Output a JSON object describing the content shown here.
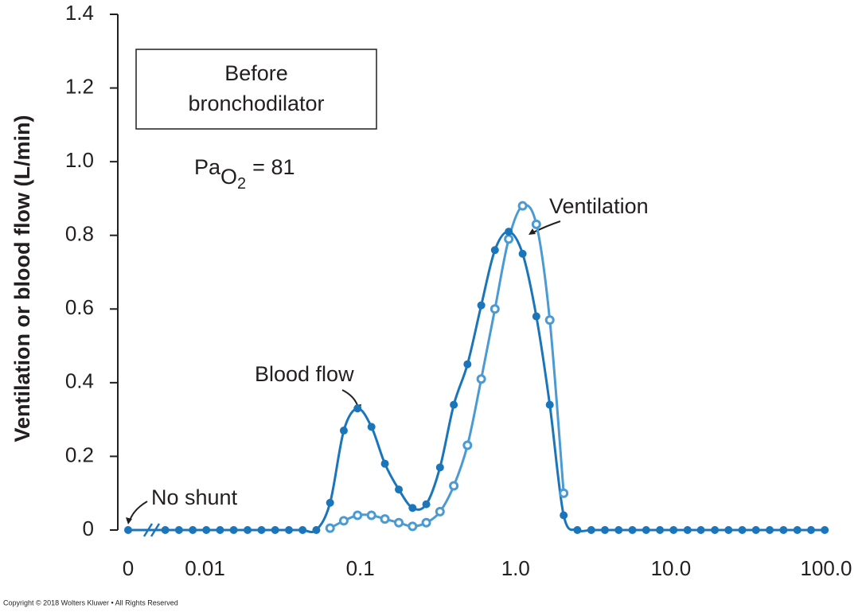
{
  "chart_data": {
    "type": "line",
    "ylabel": "Ventilation or blood flow (L/min)",
    "annotations": {
      "box_line1": "Before",
      "box_line2": "bronchodilator",
      "pao2": {
        "base": "Pa",
        "sub": "O",
        "subsub": "2",
        "rest": "= 81"
      },
      "ventilation": "Ventilation",
      "blood_flow": "Blood flow",
      "no_shunt": "No shunt"
    },
    "copyright": "Copyright © 2018 Wolters Kluwer • All Rights Reserved",
    "log_x": true,
    "x": [
      0,
      0.00555,
      0.0068,
      0.00834,
      0.0102,
      0.0125,
      0.0153,
      0.0188,
      0.0231,
      0.0283,
      0.0347,
      0.0425,
      0.0521,
      0.0639,
      0.0783,
      0.096,
      0.118,
      0.144,
      0.177,
      0.217,
      0.266,
      0.326,
      0.4,
      0.49,
      0.601,
      0.736,
      0.903,
      1.11,
      1.36,
      1.66,
      2.04,
      2.5,
      3.07,
      3.76,
      4.61,
      5.65,
      6.93,
      8.5,
      10.4,
      12.8,
      15.6,
      19.2,
      23.5,
      28.8,
      35.3,
      43.3,
      53.1,
      65.2,
      79.9,
      97.9
    ],
    "series": [
      {
        "name": "Ventilation",
        "color": "#4a9ad4",
        "marker": "open",
        "values": [
          null,
          null,
          null,
          null,
          null,
          null,
          null,
          null,
          null,
          null,
          null,
          null,
          null,
          0.005,
          0.025,
          0.04,
          0.04,
          0.03,
          0.02,
          0.01,
          0.02,
          0.05,
          0.12,
          0.23,
          0.41,
          0.6,
          0.79,
          0.88,
          0.83,
          0.57,
          0.1,
          null,
          null,
          null,
          null,
          null,
          null,
          null,
          null,
          null,
          null,
          null,
          null,
          null,
          null,
          null,
          null,
          null,
          null,
          null
        ]
      },
      {
        "name": "Blood flow",
        "color": "#1b75bb",
        "marker": "filled",
        "values": [
          0,
          0,
          0,
          0,
          0,
          0,
          0,
          0,
          0,
          0,
          0,
          0,
          0,
          0.074,
          0.27,
          0.33,
          0.28,
          0.18,
          0.11,
          0.06,
          0.07,
          0.17,
          0.34,
          0.45,
          0.61,
          0.76,
          0.81,
          0.75,
          0.58,
          0.34,
          0.04,
          0,
          0,
          0,
          0,
          0,
          0,
          0,
          0,
          0,
          0,
          0,
          0,
          0,
          0,
          0,
          0,
          0,
          0,
          0
        ]
      }
    ],
    "xlim": [
      0.0032,
      100
    ],
    "xticks": [
      0,
      0.01,
      0.1,
      {
        "value": 1,
        "label": "1.0"
      },
      {
        "value": 10,
        "label": "10.0"
      },
      {
        "value": 100,
        "label": "100.0"
      }
    ],
    "ylim": [
      0,
      1.4
    ],
    "yticks": [
      0,
      0.2,
      0.4,
      0.6,
      0.8,
      {
        "value": 1,
        "label": "1.0"
      },
      1.2,
      1.4
    ]
  }
}
